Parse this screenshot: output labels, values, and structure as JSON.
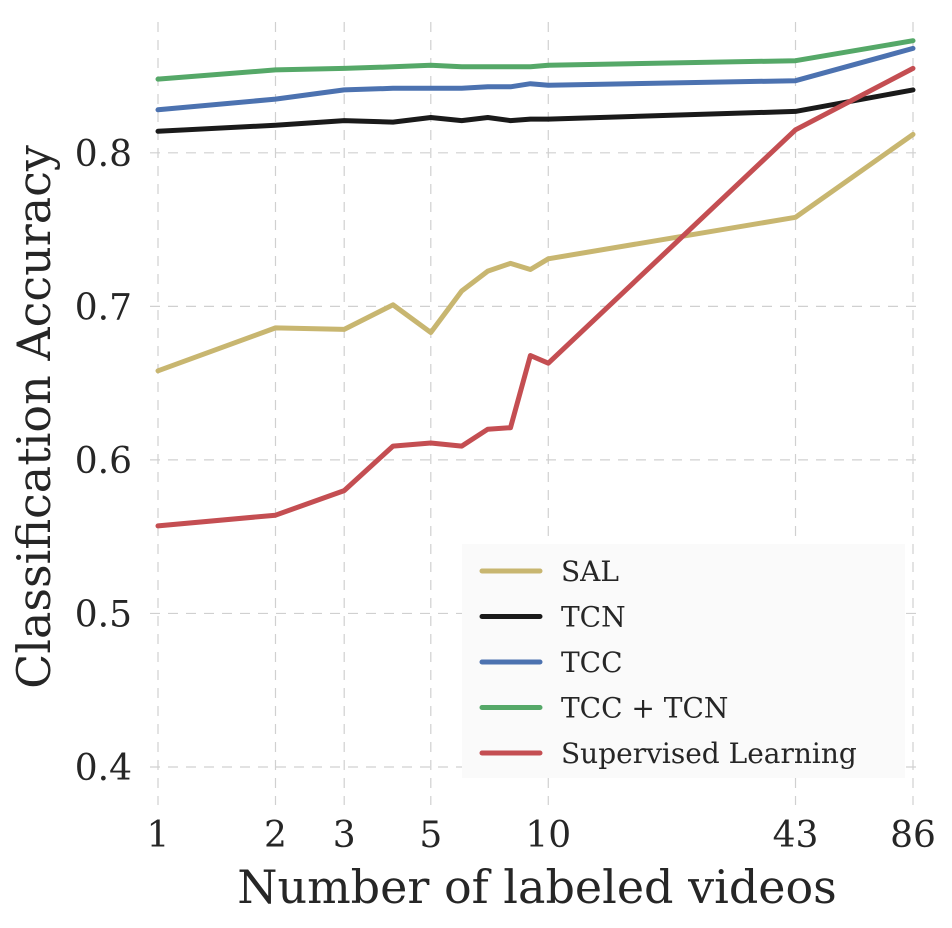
{
  "chart_data": {
    "type": "line",
    "xscale": "log",
    "xlabel": "Number of labeled videos",
    "ylabel": "Classification Accuracy",
    "xlim": [
      1,
      86
    ],
    "ylim": [
      0.385,
      0.88
    ],
    "xticks": [
      1,
      2,
      3,
      5,
      10,
      43,
      86
    ],
    "xtick_labels": [
      "1",
      "2",
      "3",
      "5",
      "10",
      "43",
      "86"
    ],
    "yticks": [
      0.4,
      0.5,
      0.6,
      0.7,
      0.8
    ],
    "ytick_labels": [
      "0.4",
      "0.5",
      "0.6",
      "0.7",
      "0.8"
    ],
    "grid": true,
    "legend_position": "lower-right",
    "x": [
      1,
      2,
      3,
      4,
      5,
      6,
      7,
      8,
      9,
      10,
      43,
      86
    ],
    "series": [
      {
        "name": "SAL",
        "color": "#c8b670",
        "values": [
          0.658,
          0.686,
          0.685,
          0.701,
          0.683,
          0.71,
          0.723,
          0.728,
          0.724,
          0.731,
          0.758,
          0.812
        ]
      },
      {
        "name": "TCN",
        "color": "#1a1a1a",
        "values": [
          0.814,
          0.818,
          0.821,
          0.82,
          0.823,
          0.821,
          0.823,
          0.821,
          0.822,
          0.822,
          0.827,
          0.841
        ]
      },
      {
        "name": "TCC",
        "color": "#4c72b0",
        "values": [
          0.828,
          0.835,
          0.841,
          0.842,
          0.842,
          0.842,
          0.843,
          0.843,
          0.845,
          0.844,
          0.847,
          0.868
        ]
      },
      {
        "name": "TCC + TCN",
        "color": "#55a868",
        "values": [
          0.848,
          0.854,
          0.855,
          0.856,
          0.857,
          0.856,
          0.856,
          0.856,
          0.856,
          0.857,
          0.86,
          0.873
        ]
      },
      {
        "name": "Supervised Learning",
        "color": "#c44e52",
        "values": [
          0.557,
          0.564,
          0.58,
          0.609,
          0.611,
          0.609,
          0.62,
          0.621,
          0.668,
          0.663,
          0.815,
          0.855
        ]
      }
    ]
  }
}
